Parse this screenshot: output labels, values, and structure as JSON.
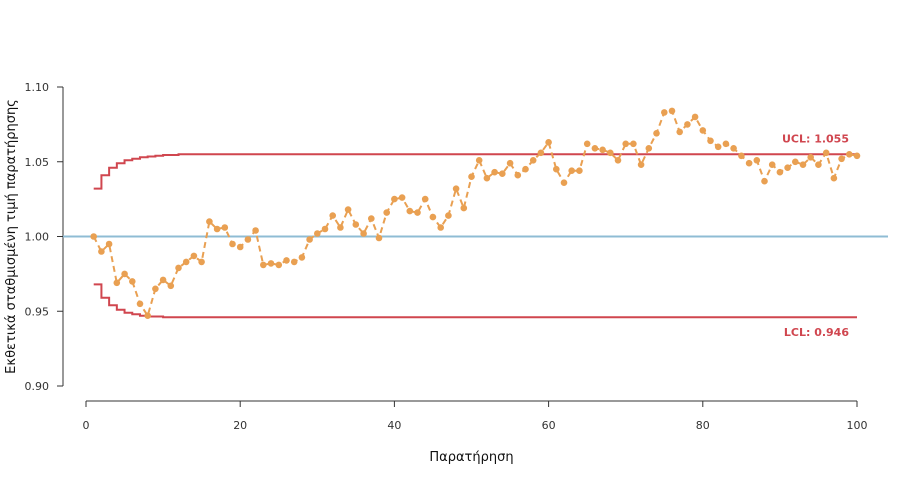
{
  "colors": {
    "background": "#ffffff",
    "axis": "#333333",
    "limits": "#d0464f",
    "center": "#8fbcd4",
    "series": "#e9a052"
  },
  "chart_data": {
    "type": "line",
    "title": "",
    "xlabel": "Παρατήρηση",
    "ylabel": "Εκθετικά σταθμισμένη τιμή παρατήρησης",
    "xlim": [
      0,
      100
    ],
    "ylim": [
      0.9,
      1.1
    ],
    "x_ticks": [
      0,
      20,
      40,
      60,
      80,
      100
    ],
    "x_tick_labels": [
      "0",
      "20",
      "40",
      "60",
      "80",
      "100"
    ],
    "y_ticks": [
      0.9,
      0.95,
      1.0,
      1.05,
      1.1
    ],
    "y_tick_labels": [
      "0.90",
      "0.95",
      "1.00",
      "1.05",
      "1.10"
    ],
    "grid": false,
    "center_line": 1.0,
    "ucl": 1.055,
    "lcl": 0.946,
    "ucl_label": "UCL: 1.055",
    "lcl_label": "LCL: 0.946",
    "ucl_steps": [
      {
        "x": 1,
        "y": 1.032
      },
      {
        "x": 2,
        "y": 1.041
      },
      {
        "x": 3,
        "y": 1.046
      },
      {
        "x": 4,
        "y": 1.049
      },
      {
        "x": 5,
        "y": 1.051
      },
      {
        "x": 6,
        "y": 1.052
      },
      {
        "x": 7,
        "y": 1.053
      },
      {
        "x": 8,
        "y": 1.0535
      },
      {
        "x": 9,
        "y": 1.054
      },
      {
        "x": 10,
        "y": 1.0545
      },
      {
        "x": 12,
        "y": 1.055
      },
      {
        "x": 100,
        "y": 1.055
      }
    ],
    "lcl_steps": [
      {
        "x": 1,
        "y": 0.968
      },
      {
        "x": 2,
        "y": 0.959
      },
      {
        "x": 3,
        "y": 0.954
      },
      {
        "x": 4,
        "y": 0.951
      },
      {
        "x": 5,
        "y": 0.949
      },
      {
        "x": 6,
        "y": 0.948
      },
      {
        "x": 7,
        "y": 0.947
      },
      {
        "x": 8,
        "y": 0.9465
      },
      {
        "x": 10,
        "y": 0.946
      },
      {
        "x": 100,
        "y": 0.946
      }
    ],
    "series": [
      {
        "x": [
          1,
          2,
          3,
          4,
          5,
          6,
          7,
          8,
          9,
          10,
          11,
          12,
          13,
          14,
          15,
          16,
          17,
          18,
          19,
          20,
          21,
          22,
          23,
          24,
          25,
          26,
          27,
          28,
          29,
          30,
          31,
          32,
          33,
          34,
          35,
          36,
          37,
          38,
          39,
          40,
          41,
          42,
          43,
          44,
          45,
          46,
          47,
          48,
          49,
          50,
          51,
          52,
          53,
          54,
          55,
          56,
          57,
          58,
          59,
          60,
          61,
          62,
          63,
          64,
          65,
          66,
          67,
          68,
          69,
          70,
          71,
          72,
          73,
          74,
          75,
          76,
          77,
          78,
          79,
          80,
          81,
          82,
          83,
          84,
          85,
          86,
          87,
          88,
          89,
          90,
          91,
          92,
          93,
          94,
          95,
          96,
          97,
          98,
          99,
          100
        ],
        "values": [
          1.0,
          0.99,
          0.995,
          0.969,
          0.975,
          0.97,
          0.955,
          0.947,
          0.965,
          0.971,
          0.967,
          0.979,
          0.983,
          0.987,
          0.983,
          1.01,
          1.005,
          1.006,
          0.995,
          0.993,
          0.998,
          1.004,
          0.981,
          0.982,
          0.981,
          0.984,
          0.983,
          0.986,
          0.998,
          1.002,
          1.005,
          1.014,
          1.006,
          1.018,
          1.008,
          1.002,
          1.012,
          0.999,
          1.016,
          1.025,
          1.026,
          1.017,
          1.016,
          1.025,
          1.013,
          1.006,
          1.014,
          1.032,
          1.019,
          1.04,
          1.051,
          1.039,
          1.043,
          1.042,
          1.049,
          1.041,
          1.045,
          1.051,
          1.056,
          1.063,
          1.045,
          1.036,
          1.044,
          1.044,
          1.062,
          1.059,
          1.058,
          1.056,
          1.051,
          1.062,
          1.062,
          1.048,
          1.059,
          1.069,
          1.083,
          1.084,
          1.07,
          1.075,
          1.08,
          1.071,
          1.064,
          1.06,
          1.062,
          1.059,
          1.054,
          1.049,
          1.051,
          1.037,
          1.048,
          1.043,
          1.046,
          1.05,
          1.048,
          1.053,
          1.048,
          1.056,
          1.039,
          1.052,
          1.055,
          1.054
        ]
      }
    ]
  }
}
